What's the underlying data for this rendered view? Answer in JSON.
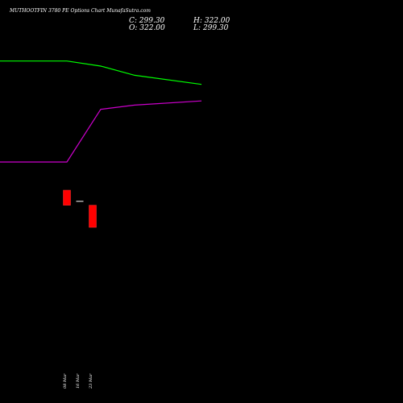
{
  "header": {
    "title": "MUTHOOTFIN 3780 PE Options Chart MunafaSutra.com",
    "close": "C: 299.30",
    "high": "H: 322.00",
    "open": "O: 322.00",
    "low": "L: 299.30"
  },
  "colors": {
    "background": "#000000",
    "upper_line": "#00ff00",
    "lower_line": "#cc00cc",
    "bear_candle": "#ff0000",
    "doji_candle": "#ffffff",
    "text": "#ffffff"
  },
  "chart_data": {
    "type": "candlestick",
    "title": "MUTHOOTFIN 3780 PE Options Chart MunafaSutra.com",
    "x_tick_labels": [
      "08 Mar",
      "16 Mar",
      "23 Mar"
    ],
    "candles": [
      {
        "label": "08 Mar",
        "open": 337.4,
        "high": 337.4,
        "close": 322.0,
        "low": 322.0,
        "color": "red"
      },
      {
        "label": "16 Mar",
        "open": 326.0,
        "high": 326.0,
        "close": 326.0,
        "low": 326.0,
        "color": "white"
      },
      {
        "label": "23 Mar",
        "open": 322.0,
        "high": 322.0,
        "close": 299.3,
        "low": 299.3,
        "color": "red"
      }
    ],
    "series": [
      {
        "color": "green",
        "x": [
          0,
          1,
          2,
          3,
          4,
          5
        ],
        "values": [
          470.0,
          470.0,
          470.0,
          464.8,
          455.4,
          446.0
        ]
      },
      {
        "color": "magenta",
        "x": [
          0,
          1,
          2,
          3,
          4,
          5
        ],
        "values": [
          366.4,
          366.4,
          366.4,
          420.5,
          424.8,
          429.1
        ]
      }
    ],
    "ylim": [
      156.2,
      491.3
    ],
    "grid": false,
    "legend": "none"
  }
}
